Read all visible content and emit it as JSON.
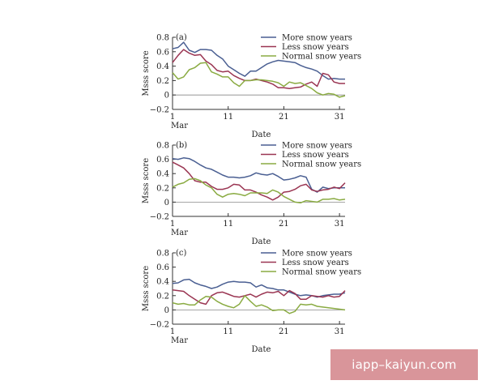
{
  "chart_data": [
    {
      "type": "line",
      "panel_label": "(a)",
      "ylabel": "Msss score",
      "xlabel": "Date",
      "ylim": [
        -0.2,
        0.8
      ],
      "yticks": [
        "0.8",
        "0.6",
        "0.4",
        "0.2",
        "0",
        "−0.2"
      ],
      "xlim": [
        1,
        32
      ],
      "xticks": [
        1,
        11,
        21,
        31
      ],
      "xtick_labels": [
        "1",
        "11",
        "21",
        "31"
      ],
      "x_sublabel": "Mar",
      "legend_position": "top-right",
      "series": [
        {
          "name": "More snow years",
          "color": "#4a5f92",
          "values": [
            0.64,
            0.66,
            0.73,
            0.62,
            0.59,
            0.63,
            0.63,
            0.62,
            0.55,
            0.5,
            0.4,
            0.35,
            0.3,
            0.26,
            0.33,
            0.33,
            0.38,
            0.43,
            0.46,
            0.48,
            0.47,
            0.46,
            0.45,
            0.41,
            0.38,
            0.36,
            0.33,
            0.27,
            0.22,
            0.23,
            0.22,
            0.22
          ]
        },
        {
          "name": "Less snow years",
          "color": "#9a3552",
          "values": [
            0.45,
            0.55,
            0.63,
            0.58,
            0.55,
            0.56,
            0.47,
            0.42,
            0.34,
            0.32,
            0.33,
            0.27,
            0.23,
            0.2,
            0.2,
            0.22,
            0.2,
            0.18,
            0.15,
            0.1,
            0.1,
            0.09,
            0.1,
            0.11,
            0.15,
            0.18,
            0.12,
            0.3,
            0.28,
            0.18,
            0.16,
            0.16
          ]
        },
        {
          "name": "Normal snow years",
          "color": "#8aab42",
          "values": [
            0.31,
            0.22,
            0.25,
            0.35,
            0.38,
            0.44,
            0.45,
            0.32,
            0.29,
            0.25,
            0.25,
            0.17,
            0.12,
            0.2,
            0.2,
            0.21,
            0.21,
            0.2,
            0.19,
            0.17,
            0.12,
            0.18,
            0.16,
            0.17,
            0.13,
            0.09,
            0.03,
            0.0,
            0.02,
            0.01,
            -0.03,
            -0.01
          ]
        }
      ]
    },
    {
      "type": "line",
      "panel_label": "(b)",
      "ylabel": "Msss score",
      "xlabel": "Date",
      "ylim": [
        -0.2,
        0.8
      ],
      "yticks": [
        "0.8",
        "0.6",
        "0.4",
        "0.2",
        "0",
        "−0.2"
      ],
      "xlim": [
        1,
        32
      ],
      "xticks": [
        1,
        11,
        21,
        31
      ],
      "xtick_labels": [
        "1",
        "11",
        "21",
        "31"
      ],
      "x_sublabel": "Mar",
      "legend_position": "top-right",
      "series": [
        {
          "name": "More snow years",
          "color": "#4a5f92",
          "values": [
            0.61,
            0.6,
            0.62,
            0.61,
            0.57,
            0.52,
            0.48,
            0.46,
            0.42,
            0.38,
            0.35,
            0.35,
            0.34,
            0.35,
            0.37,
            0.41,
            0.39,
            0.38,
            0.4,
            0.36,
            0.31,
            0.32,
            0.34,
            0.37,
            0.35,
            0.18,
            0.14,
            0.21,
            0.19,
            0.2,
            0.2,
            0.2
          ]
        },
        {
          "name": "Less snow years",
          "color": "#9a3552",
          "values": [
            0.56,
            0.52,
            0.48,
            0.4,
            0.3,
            0.28,
            0.28,
            0.22,
            0.18,
            0.18,
            0.2,
            0.25,
            0.24,
            0.17,
            0.17,
            0.14,
            0.1,
            0.07,
            0.03,
            0.07,
            0.14,
            0.15,
            0.18,
            0.23,
            0.25,
            0.17,
            0.15,
            0.17,
            0.18,
            0.21,
            0.19,
            0.27
          ]
        },
        {
          "name": "Normal snow years",
          "color": "#8aab42",
          "values": [
            0.21,
            0.25,
            0.27,
            0.32,
            0.33,
            0.3,
            0.24,
            0.2,
            0.11,
            0.07,
            0.11,
            0.12,
            0.11,
            0.09,
            0.13,
            0.13,
            0.13,
            0.12,
            0.17,
            0.14,
            0.08,
            0.04,
            0.0,
            -0.01,
            0.02,
            0.01,
            0.0,
            0.04,
            0.04,
            0.05,
            0.03,
            0.04
          ]
        }
      ]
    },
    {
      "type": "line",
      "panel_label": "(c)",
      "ylabel": "Msss score",
      "xlabel": "Date",
      "ylim": [
        -0.2,
        0.8
      ],
      "yticks": [
        "0.8",
        "0.6",
        "0.4",
        "0.2",
        "0",
        "−0.2"
      ],
      "xlim": [
        1,
        32
      ],
      "xticks": [
        1,
        11,
        21,
        31
      ],
      "xtick_labels": [
        "1",
        "11",
        "21",
        "31"
      ],
      "x_sublabel": "Mar",
      "legend_position": "top-right",
      "series": [
        {
          "name": "More snow years",
          "color": "#4a5f92",
          "values": [
            0.37,
            0.38,
            0.42,
            0.43,
            0.38,
            0.35,
            0.33,
            0.3,
            0.32,
            0.36,
            0.39,
            0.4,
            0.39,
            0.39,
            0.38,
            0.32,
            0.35,
            0.31,
            0.3,
            0.28,
            0.28,
            0.25,
            0.22,
            0.2,
            0.21,
            0.2,
            0.18,
            0.2,
            0.21,
            0.22,
            0.22,
            0.24
          ]
        },
        {
          "name": "Less snow years",
          "color": "#9a3552",
          "values": [
            0.28,
            0.27,
            0.26,
            0.2,
            0.15,
            0.1,
            0.08,
            0.2,
            0.24,
            0.25,
            0.22,
            0.19,
            0.18,
            0.2,
            0.22,
            0.18,
            0.22,
            0.25,
            0.24,
            0.26,
            0.2,
            0.27,
            0.23,
            0.15,
            0.15,
            0.2,
            0.19,
            0.18,
            0.2,
            0.18,
            0.19,
            0.27
          ]
        },
        {
          "name": "Normal snow years",
          "color": "#8aab42",
          "values": [
            0.1,
            0.08,
            0.09,
            0.07,
            0.07,
            0.14,
            0.19,
            0.18,
            0.12,
            0.08,
            0.05,
            0.03,
            0.08,
            0.2,
            0.12,
            0.05,
            0.07,
            0.04,
            -0.01,
            0.0,
            0.0,
            -0.05,
            -0.02,
            0.08,
            0.07,
            0.08,
            0.05,
            0.04,
            0.03,
            0.02,
            0.01,
            0.0
          ]
        }
      ]
    }
  ],
  "watermark": "iapp–kaiyun.com"
}
